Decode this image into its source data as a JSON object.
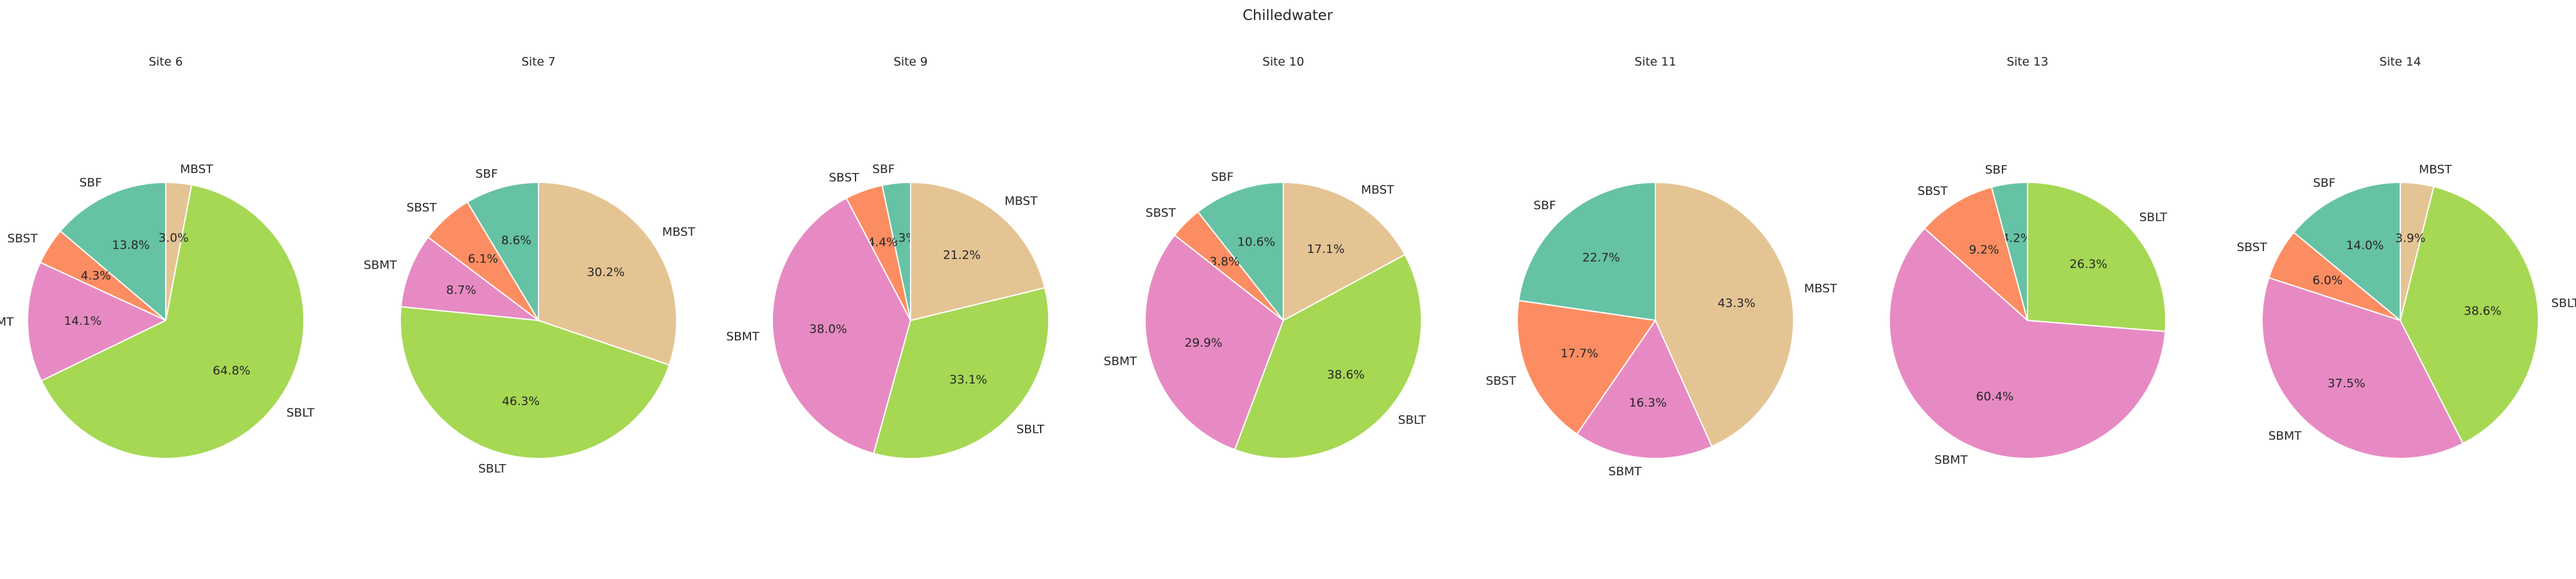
{
  "colors": {
    "SBF": "#66c2a5",
    "SBST": "#fc8d62",
    "SBMT": "#e78ac3",
    "SBLT": "#a6d854",
    "MBST": "#e5c494"
  },
  "chart_data": {
    "type": "pie",
    "title": "Chilledwater",
    "pies": [
      {
        "title": "Site 6",
        "slices": [
          {
            "label": "SBF",
            "value": 13.8
          },
          {
            "label": "SBST",
            "value": 4.3
          },
          {
            "label": "SBMT",
            "value": 14.1
          },
          {
            "label": "SBLT",
            "value": 64.8
          },
          {
            "label": "MBST",
            "value": 3.0
          }
        ]
      },
      {
        "title": "Site 7",
        "slices": [
          {
            "label": "SBF",
            "value": 8.6
          },
          {
            "label": "SBST",
            "value": 6.1
          },
          {
            "label": "SBMT",
            "value": 8.7
          },
          {
            "label": "SBLT",
            "value": 46.3
          },
          {
            "label": "MBST",
            "value": 30.2
          }
        ]
      },
      {
        "title": "Site 9",
        "slices": [
          {
            "label": "SBF",
            "value": 3.3
          },
          {
            "label": "SBST",
            "value": 4.4
          },
          {
            "label": "SBMT",
            "value": 38.0
          },
          {
            "label": "SBLT",
            "value": 33.1
          },
          {
            "label": "MBST",
            "value": 21.2
          }
        ]
      },
      {
        "title": "Site 10",
        "slices": [
          {
            "label": "SBF",
            "value": 10.6
          },
          {
            "label": "SBST",
            "value": 3.8
          },
          {
            "label": "SBMT",
            "value": 29.9
          },
          {
            "label": "SBLT",
            "value": 38.6
          },
          {
            "label": "MBST",
            "value": 17.1
          }
        ]
      },
      {
        "title": "Site 11",
        "slices": [
          {
            "label": "SBF",
            "value": 22.7
          },
          {
            "label": "SBST",
            "value": 17.7
          },
          {
            "label": "SBMT",
            "value": 16.3
          },
          {
            "label": "MBST",
            "value": 43.3
          }
        ]
      },
      {
        "title": "Site 13",
        "slices": [
          {
            "label": "SBF",
            "value": 4.2
          },
          {
            "label": "SBST",
            "value": 9.2
          },
          {
            "label": "SBMT",
            "value": 60.4
          },
          {
            "label": "SBLT",
            "value": 26.3
          }
        ]
      },
      {
        "title": "Site 14",
        "slices": [
          {
            "label": "SBF",
            "value": 14.0
          },
          {
            "label": "SBST",
            "value": 6.0
          },
          {
            "label": "SBMT",
            "value": 37.5
          },
          {
            "label": "SBLT",
            "value": 38.6
          },
          {
            "label": "MBST",
            "value": 3.9
          }
        ]
      }
    ]
  }
}
